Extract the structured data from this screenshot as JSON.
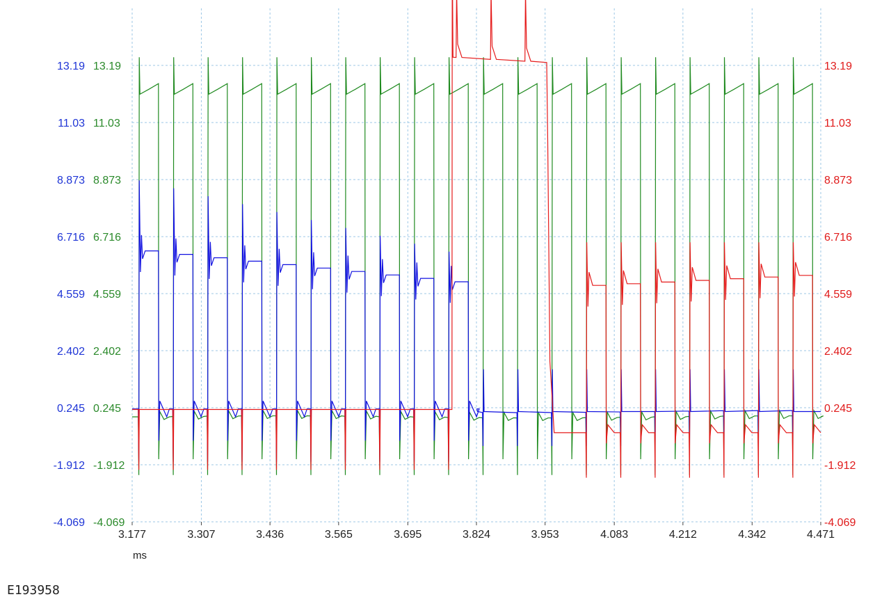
{
  "chart_data": {
    "type": "line",
    "title": "",
    "xlabel": "ms",
    "x_ticks": [
      "3.177",
      "3.307",
      "3.436",
      "3.565",
      "3.695",
      "3.824",
      "3.953",
      "4.083",
      "4.212",
      "4.342",
      "4.471"
    ],
    "xlim": [
      3.177,
      4.471
    ],
    "y_ticks": [
      "13.19",
      "11.03",
      "8.873",
      "6.716",
      "4.559",
      "2.402",
      "0.245",
      "-1.912",
      "-4.069"
    ],
    "ylim": [
      -4.069,
      17.5
    ],
    "grid": true,
    "axes": {
      "left_outer_color": "#1f35d6",
      "left_inner_color": "#2b8a2b",
      "right_color": "#e01a1a"
    },
    "series": [
      {
        "color": "#1f8a1f",
        "pulse_period_ms": 0.06469,
        "pulse_width_ms": 0.0374,
        "high_level": 12.3,
        "low_level": -0.1,
        "spike_peak": 13.5,
        "spike_trough": -2.3
      },
      {
        "color": "#1010e0",
        "segments": [
          {
            "x": [
              3.177,
              3.825
            ],
            "high_start": 6.2,
            "high_end": 4.9,
            "spike_start": 8.9,
            "spike_end": 5.9,
            "low": -0.2,
            "baseline": 0.2
          },
          {
            "x": [
              3.825,
              4.471
            ],
            "baseline": 0.1
          }
        ],
        "trough": -1.8
      },
      {
        "color": "#e51b1b",
        "segments": [
          {
            "x": [
              3.177,
              3.778
            ],
            "baseline": 0.18
          },
          {
            "x": [
              3.778,
              3.958
            ],
            "level_start": 13.5,
            "level_end": 13.3,
            "spike": 17.5
          },
          {
            "x": [
              3.958,
              4.471
            ],
            "high_start": 4.8,
            "high_end": 5.3,
            "spike": 6.5,
            "low": -0.7
          }
        ],
        "trough": -2.4
      }
    ]
  },
  "footer": {
    "code": "E193958"
  }
}
